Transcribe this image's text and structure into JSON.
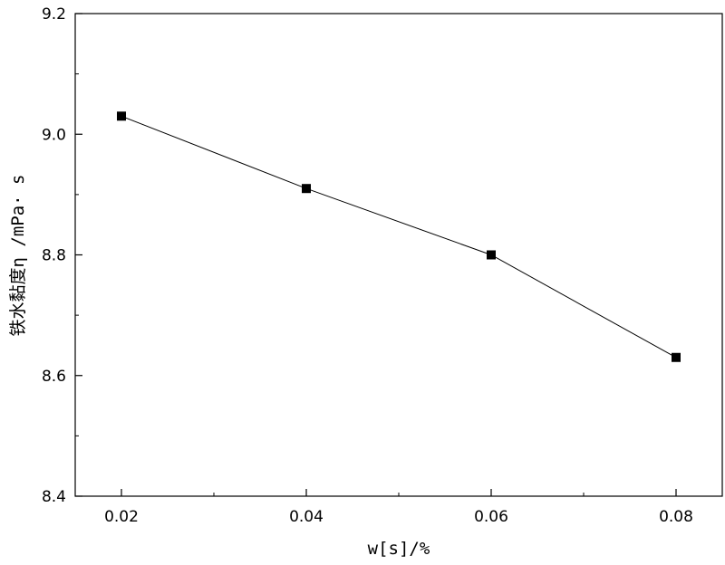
{
  "chart_data": {
    "type": "line",
    "title": "",
    "xlabel": "w[s]/%",
    "ylabel": "铁水黏度η /mPa· s",
    "x": [
      0.02,
      0.04,
      0.06,
      0.08
    ],
    "series": [
      {
        "values": [
          9.03,
          8.91,
          8.8,
          8.63
        ]
      }
    ],
    "xlim": [
      0.015,
      0.085
    ],
    "ylim": [
      8.4,
      9.2
    ],
    "x_ticks": [
      "0.02",
      "0.04",
      "0.06",
      "0.08"
    ],
    "y_ticks": [
      "8.4",
      "8.6",
      "8.8",
      "9.0",
      "9.2"
    ],
    "x_tick_values": [
      0.02,
      0.04,
      0.06,
      0.08
    ],
    "y_tick_values": [
      8.4,
      8.6,
      8.8,
      9.0,
      9.2
    ],
    "marker": "square",
    "grid": false,
    "legend": "none",
    "colors": {
      "line": "#000000",
      "marker": "#000000",
      "axis": "#000000"
    }
  }
}
